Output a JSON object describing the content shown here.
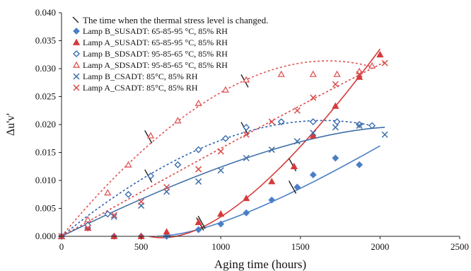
{
  "chart_data": {
    "type": "scatter",
    "xlabel": "Aging time (hours)",
    "ylabel": "Δu'v'",
    "xlim": [
      0,
      2500
    ],
    "ylim": [
      0,
      0.04
    ],
    "x_ticks": [
      "0",
      "500",
      "1000",
      "1500",
      "2000",
      "2500"
    ],
    "y_ticks": [
      "0.000",
      "0.005",
      "0.010",
      "0.015",
      "0.020",
      "0.025",
      "0.030",
      "0.035",
      "0.040"
    ],
    "grid": false,
    "legend_position": "top-left",
    "legend_note": "The time when the thermal stress level is changed.",
    "series": [
      {
        "name": "Lamp B_SUSADT: 65-85-95 °C, 85% RH",
        "color": "#4a7fc7",
        "marker": "diamond-filled",
        "fit": "solid",
        "x": [
          0,
          165,
          330,
          500,
          660,
          860,
          1000,
          1160,
          1320,
          1480,
          1580,
          1720,
          1870
        ],
        "y": [
          0,
          0.0015,
          0,
          0,
          0,
          0.0012,
          0.0022,
          0.0042,
          0.0065,
          0.0088,
          0.011,
          0.014,
          0.0128
        ],
        "fit_curve": {
          "x": [
            600,
            2000
          ],
          "y": [
            0,
            0.0162
          ]
        }
      },
      {
        "name": "Lamp A_SUSADT: 65-85-95 °C, 85% RH",
        "color": "#d63a3a",
        "marker": "triangle-filled",
        "fit": "solid",
        "x": [
          0,
          165,
          330,
          500,
          660,
          860,
          1000,
          1160,
          1320,
          1460,
          1580,
          1720,
          1870,
          2000
        ],
        "y": [
          0,
          0.0015,
          0,
          0,
          0.0008,
          0.0025,
          0.004,
          0.0068,
          0.0098,
          0.0125,
          0.018,
          0.0233,
          0.0285,
          0.0325
        ],
        "fit_curve": {
          "x": [
            550,
            2000
          ],
          "y": [
            0,
            0.0335
          ]
        }
      },
      {
        "name": "Lamp B_SDSADT: 95-85-65 °C, 85% RH",
        "color": "#2e64ad",
        "marker": "diamond-open",
        "fit": "dotted",
        "x": [
          0,
          165,
          290,
          420,
          560,
          730,
          860,
          1030,
          1160,
          1380,
          1580,
          1730,
          1870,
          1950
        ],
        "y": [
          0,
          0.002,
          0.004,
          0.0075,
          0.0108,
          0.0128,
          0.0155,
          0.0175,
          0.0195,
          0.0205,
          0.0205,
          0.0205,
          0.02,
          0.0198
        ],
        "fit_curve": {
          "x": [
            0,
            1950
          ],
          "y": [
            0,
            0.0198
          ]
        }
      },
      {
        "name": "Lamp A_SDSADT: 95-85-65 °C, 85% RH",
        "color": "#e05555",
        "marker": "triangle-open",
        "fit": "dotted",
        "x": [
          0,
          165,
          290,
          420,
          560,
          730,
          860,
          1030,
          1160,
          1380,
          1580,
          1730,
          1870,
          1950
        ],
        "y": [
          0,
          0.003,
          0.0078,
          0.0128,
          0.018,
          0.0207,
          0.0238,
          0.0262,
          0.028,
          0.029,
          0.029,
          0.029,
          0.0295,
          0.0305
        ],
        "fit_curve": {
          "x": [
            0,
            1950
          ],
          "y": [
            0,
            0.0303
          ]
        }
      },
      {
        "name": "Lamp B_CSADT: 85°C, 85% RH",
        "color": "#3f6ea8",
        "marker": "x",
        "fit": "solid",
        "x": [
          0,
          165,
          330,
          500,
          660,
          860,
          1000,
          1160,
          1320,
          1480,
          1580,
          1720,
          1870,
          2030
        ],
        "y": [
          0,
          0.0015,
          0.0035,
          0.0055,
          0.008,
          0.0098,
          0.0118,
          0.014,
          0.0155,
          0.017,
          0.0185,
          0.0195,
          0.0198,
          0.0182
        ],
        "fit_curve": {
          "x": [
            0,
            2030
          ],
          "y": [
            0,
            0.0195
          ]
        }
      },
      {
        "name": "Lamp A_CSADT: 85°C, 85% RH",
        "color": "#d94a4a",
        "marker": "x",
        "fit": "dotted",
        "x": [
          0,
          165,
          330,
          500,
          660,
          860,
          1000,
          1160,
          1320,
          1480,
          1580,
          1720,
          1870,
          2030
        ],
        "y": [
          0,
          0.0015,
          0.0038,
          0.0062,
          0.0088,
          0.012,
          0.0152,
          0.0182,
          0.0205,
          0.0225,
          0.0248,
          0.0272,
          0.029,
          0.031
        ],
        "fit_curve": {
          "x": [
            0,
            2030
          ],
          "y": [
            0,
            0.0312
          ]
        }
      }
    ],
    "stress_change_marks": [
      {
        "x": 870,
        "y": 0.0022
      },
      {
        "x": 1450,
        "y": 0.0088
      },
      {
        "x": 880,
        "y": 0.0025
      },
      {
        "x": 1450,
        "y": 0.0128
      },
      {
        "x": 545,
        "y": 0.0108
      },
      {
        "x": 1150,
        "y": 0.0193
      },
      {
        "x": 545,
        "y": 0.0178
      },
      {
        "x": 1150,
        "y": 0.0278
      }
    ]
  }
}
